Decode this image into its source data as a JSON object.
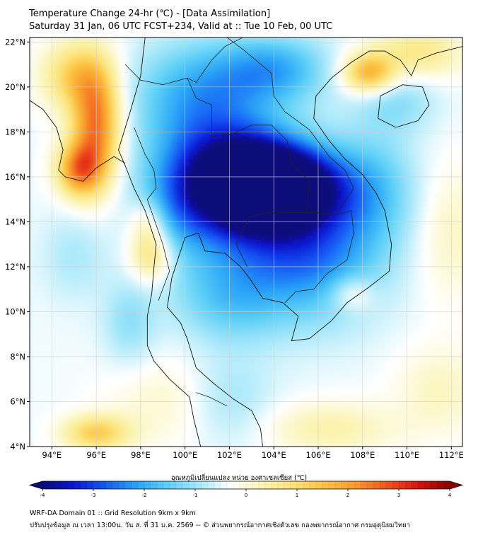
{
  "title": {
    "line1": "Temperature Change 24-hr (℃) - [Data Assimilation]",
    "line2": "Saturday 31 Jan, 06 UTC FCST+234, Valid at :: Tue 10 Feb, 00 UTC"
  },
  "map": {
    "lon_range": [
      93,
      112.5
    ],
    "lat_range": [
      4,
      22.2
    ],
    "lat_ticks": [
      {
        "value": 22,
        "label": "22°N"
      },
      {
        "value": 20,
        "label": "20°N"
      },
      {
        "value": 18,
        "label": "18°N"
      },
      {
        "value": 16,
        "label": "16°N"
      },
      {
        "value": 14,
        "label": "14°N"
      },
      {
        "value": 12,
        "label": "12°N"
      },
      {
        "value": 10,
        "label": "10°N"
      },
      {
        "value": 8,
        "label": "8°N"
      },
      {
        "value": 6,
        "label": "6°N"
      },
      {
        "value": 4,
        "label": "4°N"
      }
    ],
    "lon_ticks": [
      {
        "value": 94,
        "label": "94°E"
      },
      {
        "value": 96,
        "label": "96°E"
      },
      {
        "value": 98,
        "label": "98°E"
      },
      {
        "value": 100,
        "label": "100°E"
      },
      {
        "value": 102,
        "label": "102°E"
      },
      {
        "value": 104,
        "label": "104°E"
      },
      {
        "value": 106,
        "label": "106°E"
      },
      {
        "value": 108,
        "label": "108°E"
      },
      {
        "value": 110,
        "label": "110°E"
      },
      {
        "value": 112,
        "label": "112°E"
      }
    ],
    "field": [
      {
        "lon": 104.2,
        "lat": 15.6,
        "value": -4.3,
        "spread_lon": 2.6,
        "spread_lat": 1.6
      },
      {
        "lon": 102.5,
        "lat": 15.8,
        "value": -2.6,
        "spread_lon": 2.4,
        "spread_lat": 2.0
      },
      {
        "lon": 103.5,
        "lat": 14.5,
        "value": -1.9,
        "spread_lon": 3.5,
        "spread_lat": 3.2
      },
      {
        "lon": 101.0,
        "lat": 17.5,
        "value": -1.3,
        "spread_lon": 3.0,
        "spread_lat": 3.0
      },
      {
        "lon": 100.5,
        "lat": 20.0,
        "value": -1.0,
        "spread_lon": 3.0,
        "spread_lat": 2.2
      },
      {
        "lon": 104.0,
        "lat": 20.8,
        "value": -1.5,
        "spread_lon": 2.5,
        "spread_lat": 1.5
      },
      {
        "lon": 106.0,
        "lat": 12.5,
        "value": -1.5,
        "spread_lon": 3.0,
        "spread_lat": 3.0
      },
      {
        "lon": 102.0,
        "lat": 10.5,
        "value": -1.0,
        "spread_lon": 2.5,
        "spread_lat": 2.0
      },
      {
        "lon": 108.5,
        "lat": 15.5,
        "value": -1.0,
        "spread_lon": 2.0,
        "spread_lat": 2.5
      },
      {
        "lon": 109.5,
        "lat": 19.5,
        "value": -0.8,
        "spread_lon": 1.8,
        "spread_lat": 1.5
      },
      {
        "lon": 99.5,
        "lat": 14.5,
        "value": -0.9,
        "spread_lon": 1.8,
        "spread_lat": 2.5
      },
      {
        "lon": 96.0,
        "lat": 18.3,
        "value": 2.9,
        "spread_lon": 1.1,
        "spread_lat": 2.6
      },
      {
        "lon": 95.2,
        "lat": 16.3,
        "value": 2.4,
        "spread_lon": 1.0,
        "spread_lat": 1.2
      },
      {
        "lon": 95.0,
        "lat": 20.5,
        "value": 1.5,
        "spread_lon": 1.5,
        "spread_lat": 1.5
      },
      {
        "lon": 108.3,
        "lat": 20.6,
        "value": 2.3,
        "spread_lon": 1.2,
        "spread_lat": 0.9
      },
      {
        "lon": 110.5,
        "lat": 21.5,
        "value": 1.2,
        "spread_lon": 2.0,
        "spread_lat": 1.2
      },
      {
        "lon": 98.5,
        "lat": 12.5,
        "value": 1.6,
        "spread_lon": 1.0,
        "spread_lat": 1.2
      },
      {
        "lon": 98.3,
        "lat": 14.0,
        "value": 1.0,
        "spread_lon": 0.8,
        "spread_lat": 1.0
      },
      {
        "lon": 96.0,
        "lat": 4.6,
        "value": 1.7,
        "spread_lon": 1.5,
        "spread_lat": 0.8
      },
      {
        "lon": 107.5,
        "lat": 10.8,
        "value": 0.9,
        "spread_lon": 1.0,
        "spread_lat": 0.8
      },
      {
        "lon": 106.5,
        "lat": 4.8,
        "value": 0.8,
        "spread_lon": 3.0,
        "spread_lat": 1.2
      },
      {
        "lon": 111.5,
        "lat": 6.5,
        "value": 0.6,
        "spread_lon": 2.0,
        "spread_lat": 2.0
      },
      {
        "lon": 99.0,
        "lat": 6.0,
        "value": 0.5,
        "spread_lon": 2.5,
        "spread_lat": 2.0
      },
      {
        "lon": 112.0,
        "lat": 13.5,
        "value": 0.6,
        "spread_lon": 1.5,
        "spread_lat": 3.0
      },
      {
        "lon": 97.5,
        "lat": 9.5,
        "value": -0.7,
        "spread_lon": 1.2,
        "spread_lat": 2.0
      },
      {
        "lon": 95.0,
        "lat": 12.5,
        "value": -0.5,
        "spread_lon": 1.5,
        "spread_lat": 2.0
      },
      {
        "lon": 102.0,
        "lat": 6.0,
        "value": -0.6,
        "spread_lon": 2.0,
        "spread_lat": 2.0
      }
    ],
    "coastlines": [
      [
        [
          98.2,
          22.2
        ],
        [
          98.0,
          20.5
        ],
        [
          97.5,
          18.8
        ],
        [
          97.0,
          17.2
        ],
        [
          97.3,
          16.5
        ],
        [
          97.7,
          15.5
        ],
        [
          98.2,
          14.5
        ],
        [
          98.7,
          13.0
        ],
        [
          98.6,
          12.0
        ],
        [
          98.5,
          10.8
        ],
        [
          98.3,
          9.8
        ],
        [
          98.3,
          8.5
        ],
        [
          98.6,
          7.8
        ],
        [
          99.3,
          7.0
        ],
        [
          100.2,
          6.2
        ],
        [
          100.4,
          5.2
        ],
        [
          100.7,
          4.0
        ]
      ],
      [
        [
          103.5,
          4.0
        ],
        [
          103.4,
          4.8
        ],
        [
          103.0,
          5.6
        ],
        [
          102.2,
          6.1
        ],
        [
          101.3,
          6.8
        ],
        [
          100.5,
          7.5
        ],
        [
          100.1,
          8.8
        ],
        [
          99.8,
          9.5
        ],
        [
          99.2,
          10.2
        ],
        [
          99.4,
          11.5
        ],
        [
          99.7,
          12.4
        ],
        [
          100.0,
          13.3
        ],
        [
          100.6,
          13.5
        ],
        [
          100.9,
          12.7
        ],
        [
          101.8,
          12.6
        ],
        [
          102.5,
          12.0
        ],
        [
          102.9,
          11.5
        ],
        [
          103.5,
          10.6
        ],
        [
          104.4,
          10.4
        ],
        [
          105.1,
          9.8
        ],
        [
          104.8,
          8.7
        ],
        [
          105.6,
          8.8
        ],
        [
          106.6,
          9.6
        ],
        [
          107.3,
          10.4
        ],
        [
          108.3,
          11.1
        ],
        [
          109.2,
          11.8
        ],
        [
          109.3,
          13.0
        ],
        [
          109.0,
          14.5
        ],
        [
          108.6,
          15.3
        ],
        [
          108.0,
          16.1
        ],
        [
          107.2,
          16.8
        ],
        [
          106.5,
          17.6
        ],
        [
          105.8,
          18.6
        ],
        [
          105.9,
          19.6
        ],
        [
          106.6,
          20.4
        ],
        [
          107.5,
          21.1
        ],
        [
          108.3,
          21.6
        ],
        [
          109.0,
          21.6
        ],
        [
          109.7,
          21.2
        ],
        [
          110.2,
          20.5
        ],
        [
          110.5,
          21.2
        ],
        [
          111.3,
          21.5
        ],
        [
          112.5,
          21.8
        ]
      ],
      [
        [
          109.5,
          18.2
        ],
        [
          110.5,
          18.5
        ],
        [
          111.0,
          19.2
        ],
        [
          110.7,
          20.0
        ],
        [
          109.8,
          20.1
        ],
        [
          108.8,
          19.6
        ],
        [
          108.7,
          18.6
        ],
        [
          109.5,
          18.2
        ]
      ],
      [
        [
          93.0,
          19.4
        ],
        [
          93.6,
          19.0
        ],
        [
          94.2,
          18.2
        ],
        [
          94.5,
          17.2
        ],
        [
          94.3,
          16.3
        ],
        [
          94.6,
          16.0
        ],
        [
          95.4,
          15.8
        ],
        [
          96.0,
          16.4
        ],
        [
          96.8,
          16.9
        ],
        [
          97.3,
          16.6
        ]
      ]
    ],
    "borders": [
      [
        [
          97.3,
          21.0
        ],
        [
          98.0,
          20.3
        ],
        [
          99.0,
          20.1
        ],
        [
          100.1,
          20.4
        ],
        [
          100.5,
          20.2
        ],
        [
          101.2,
          21.2
        ],
        [
          101.8,
          21.8
        ],
        [
          102.6,
          22.2
        ]
      ],
      [
        [
          97.7,
          18.2
        ],
        [
          98.2,
          17.0
        ],
        [
          98.6,
          16.3
        ],
        [
          98.7,
          15.5
        ],
        [
          98.3,
          15.0
        ],
        [
          99.0,
          13.0
        ],
        [
          99.3,
          11.8
        ],
        [
          98.8,
          10.5
        ]
      ],
      [
        [
          100.1,
          20.4
        ],
        [
          100.5,
          19.5
        ],
        [
          101.2,
          19.2
        ],
        [
          101.2,
          17.8
        ],
        [
          102.1,
          17.9
        ],
        [
          103.0,
          18.3
        ],
        [
          103.9,
          18.3
        ],
        [
          104.6,
          17.6
        ],
        [
          104.8,
          16.6
        ],
        [
          105.6,
          15.8
        ],
        [
          105.5,
          14.4
        ]
      ],
      [
        [
          105.5,
          14.4
        ],
        [
          104.7,
          14.4
        ],
        [
          103.7,
          14.4
        ],
        [
          102.9,
          14.2
        ],
        [
          102.6,
          13.6
        ],
        [
          102.3,
          13.0
        ],
        [
          102.8,
          12.0
        ]
      ],
      [
        [
          105.5,
          14.4
        ],
        [
          106.1,
          14.4
        ],
        [
          106.8,
          14.3
        ],
        [
          107.5,
          14.5
        ],
        [
          107.6,
          13.5
        ],
        [
          107.3,
          12.3
        ],
        [
          106.4,
          11.7
        ],
        [
          105.8,
          11.0
        ],
        [
          105.0,
          10.9
        ],
        [
          104.5,
          10.4
        ]
      ],
      [
        [
          106.8,
          14.3
        ],
        [
          107.6,
          15.5
        ],
        [
          107.2,
          16.3
        ],
        [
          106.5,
          16.9
        ],
        [
          105.6,
          18.1
        ],
        [
          104.5,
          18.9
        ],
        [
          104.0,
          19.6
        ],
        [
          103.9,
          20.6
        ],
        [
          102.7,
          21.6
        ],
        [
          101.9,
          22.2
        ]
      ],
      [
        [
          100.5,
          6.4
        ],
        [
          101.1,
          6.2
        ],
        [
          101.9,
          5.8
        ]
      ]
    ]
  },
  "colorbar": {
    "title": "อุณหภูมิเปลี่ยนแปลง หน่วย องศาเซลเซียส (℃)",
    "min": -4,
    "max": 4,
    "tick_labels": [
      "-4",
      "-3",
      "-2",
      "-1",
      "0",
      "1",
      "2",
      "3",
      "4"
    ],
    "colors": [
      "#0a0a7a",
      "#0a16d2",
      "#1558f5",
      "#2aa4f7",
      "#5dd0f7",
      "#a8e8fa",
      "#ffffff",
      "#fbf4b4",
      "#fce47a",
      "#fcc23f",
      "#f99a2c",
      "#f1531f",
      "#d71212",
      "#8b0000"
    ]
  },
  "footer": {
    "line1": "WRF-DA Domain 01 :: Grid Resolution 9km x 9km",
    "line2": "ปรับปรุงข้อมูล ณ เวลา 13:00น. วัน ส. ที่ 31 ม.ค. 2569 -- © ส่วนพยากรณ์อากาศเชิงตัวเลข กองพยากรณ์อากาศ กรมอุตุนิยมวิทยา"
  }
}
